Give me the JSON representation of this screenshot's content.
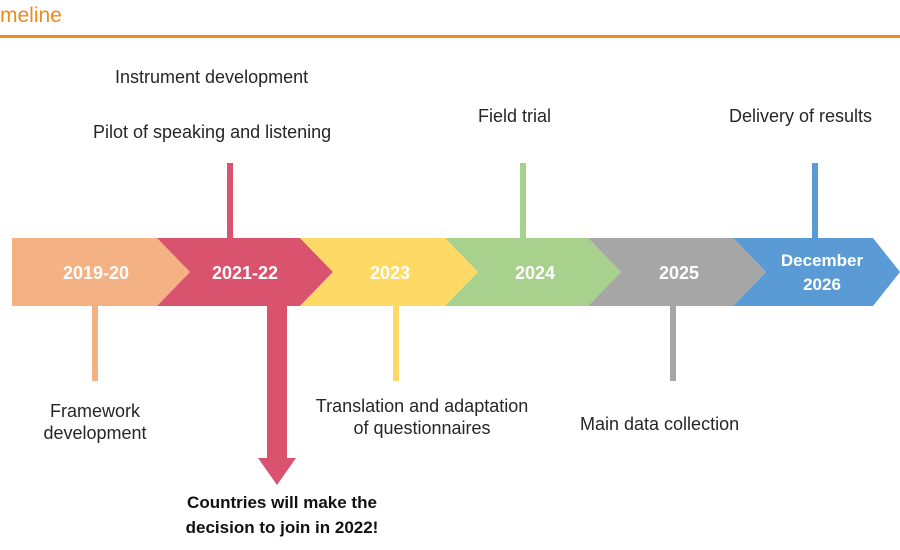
{
  "header": {
    "title": "meline"
  },
  "timeline": {
    "segments": [
      {
        "year": "2019-20",
        "color": "#f4b183"
      },
      {
        "year": "2021-22",
        "color": "#d9526e"
      },
      {
        "year": "2023",
        "color": "#ffd966"
      },
      {
        "year": "2024",
        "color": "#a9d18e"
      },
      {
        "year": "2025",
        "color": "#a6a6a6"
      },
      {
        "year_line1": "December",
        "year_line2": "2026",
        "color": "#5b9bd5"
      }
    ],
    "labels_above": [
      {
        "text": "Instrument development"
      },
      {
        "text": "Pilot of speaking and listening"
      },
      {
        "text": "Field trial"
      },
      {
        "text": "Delivery of results"
      }
    ],
    "labels_below": [
      {
        "line1": "Framework",
        "line2": "development"
      },
      {
        "line1": "Translation and adaptation",
        "line2": "of questionnaires"
      },
      {
        "text": "Main data collection"
      }
    ],
    "decision": {
      "line1": "Countries will make the",
      "line2": "decision to join in 2022!"
    }
  }
}
